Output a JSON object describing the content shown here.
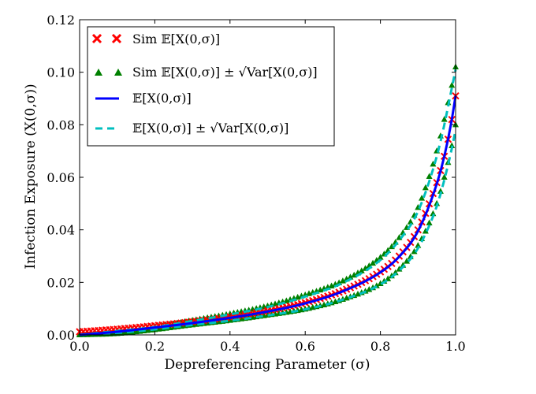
{
  "chart_data": {
    "type": "line",
    "title": "",
    "xlabel": "Depreferencing Parameter (σ)",
    "ylabel": "Infection Exposure (X(0,σ))",
    "xlim": [
      0.0,
      1.0
    ],
    "ylim": [
      0.0,
      0.12
    ],
    "xticks": [
      "0.0",
      "0.2",
      "0.4",
      "0.6",
      "0.8",
      "1.0"
    ],
    "yticks": [
      "0.00",
      "0.02",
      "0.04",
      "0.06",
      "0.08",
      "0.10",
      "0.12"
    ],
    "grid": false,
    "legend_position": "top-left",
    "legend": [
      "Sim 𝔼[X(0,σ)]",
      "Sim 𝔼[X(0,σ)] ± √Var[X(0,σ)]",
      "𝔼[X(0,σ)]",
      "𝔼[X(0,σ)] ± √Var[X(0,σ)]"
    ],
    "x": [
      0.0,
      0.1,
      0.2,
      0.3,
      0.4,
      0.5,
      0.6,
      0.7,
      0.8,
      0.85,
      0.9,
      0.95,
      0.97,
      0.99,
      1.0
    ],
    "series": [
      {
        "name": "Sim 𝔼[X(0,σ)]",
        "style": "x-marker",
        "color": "#ff0000",
        "values": [
          0.0012,
          0.0022,
          0.0035,
          0.005,
          0.0068,
          0.0092,
          0.0123,
          0.0168,
          0.024,
          0.03,
          0.04,
          0.058,
          0.068,
          0.082,
          0.091
        ]
      },
      {
        "name": "Sim 𝔼[X(0,σ)] + √Var[X(0,σ)]",
        "style": "triangle-marker",
        "color": "#008000",
        "values": [
          0.0002,
          0.0015,
          0.003,
          0.0055,
          0.008,
          0.011,
          0.0152,
          0.0205,
          0.0295,
          0.037,
          0.0485,
          0.07,
          0.082,
          0.095,
          0.102
        ]
      },
      {
        "name": "Sim 𝔼[X(0,σ)] − √Var[X(0,σ)]",
        "style": "triangle-marker",
        "color": "#008000",
        "values": [
          0.0,
          0.0005,
          0.002,
          0.0038,
          0.0055,
          0.0075,
          0.0098,
          0.0135,
          0.0195,
          0.025,
          0.034,
          0.05,
          0.06,
          0.072,
          0.08
        ]
      },
      {
        "name": "𝔼[X(0,σ)]",
        "style": "solid-line",
        "color": "#0000ff",
        "values": [
          0.0,
          0.0012,
          0.0028,
          0.0045,
          0.0065,
          0.0089,
          0.012,
          0.0166,
          0.0238,
          0.0298,
          0.0395,
          0.0575,
          0.068,
          0.082,
          0.091
        ]
      },
      {
        "name": "𝔼[X(0,σ)] + √Var[X(0,σ)]",
        "style": "dashed-line",
        "color": "#00bfbf",
        "values": [
          0.0,
          0.0015,
          0.003,
          0.0053,
          0.0078,
          0.0106,
          0.0146,
          0.0198,
          0.0285,
          0.036,
          0.047,
          0.068,
          0.08,
          0.094,
          0.101
        ]
      },
      {
        "name": "𝔼[X(0,σ)] − √Var[X(0,σ)]",
        "style": "dashed-line",
        "color": "#00bfbf",
        "values": [
          0.0,
          0.0008,
          0.0021,
          0.0038,
          0.0054,
          0.0074,
          0.0097,
          0.0134,
          0.0192,
          0.0245,
          0.033,
          0.049,
          0.059,
          0.071,
          0.078
        ]
      }
    ]
  }
}
